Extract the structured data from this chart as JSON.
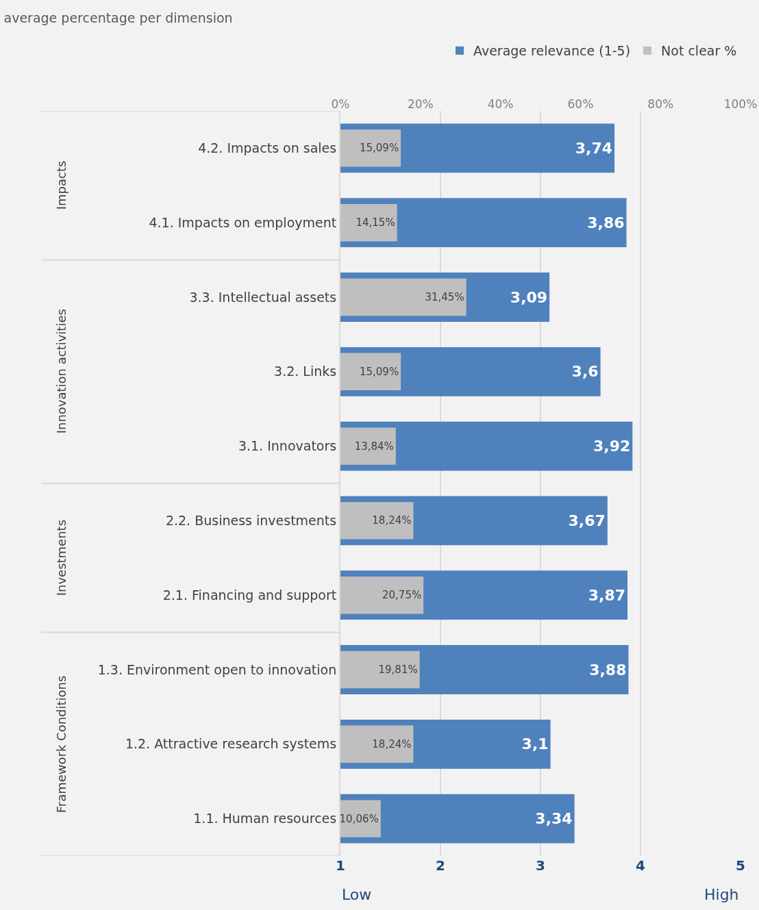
{
  "chart_data": {
    "type": "bar",
    "orientation": "horizontal",
    "title": "average percentage per dimension",
    "categories": [
      "4.2. Impacts on sales",
      "4.1. Impacts on employment",
      "3.3. Intellectual assets",
      "3.2. Links",
      "3.1. Innovators",
      "2.2. Business investments",
      "2.1. Financing and support",
      "1.3. Environment open to innovation",
      "1.2. Attractive research systems",
      "1.1. Human resources"
    ],
    "series": [
      {
        "name": "Average relevance (1-5)",
        "color": "#4f81bd",
        "values": [
          3.74,
          3.86,
          3.09,
          3.6,
          3.92,
          3.67,
          3.87,
          3.88,
          3.1,
          3.34
        ],
        "value_labels": [
          "3,74",
          "3,86",
          "3,09",
          "3,6",
          "3,92",
          "3,67",
          "3,87",
          "3,88",
          "3,1",
          "3,34"
        ]
      },
      {
        "name": "Not clear %",
        "color": "#bfbfbf",
        "axis": "x2",
        "values": [
          15.09,
          14.15,
          31.45,
          15.09,
          13.84,
          18.24,
          20.75,
          19.81,
          18.24,
          10.06
        ],
        "value_labels": [
          "15,09%",
          "14,15%",
          "31,45%",
          "15,09%",
          "13,84%",
          "18,24%",
          "20,75%",
          "19,81%",
          "18,24%",
          "10,06%"
        ]
      }
    ],
    "xlim": [
      1,
      5
    ],
    "xticks": [
      1,
      2,
      3,
      4,
      5
    ],
    "x2lim": [
      0,
      100
    ],
    "x2ticks": [
      {
        "value": 0,
        "label": "0%"
      },
      {
        "value": 20,
        "label": "20%"
      },
      {
        "value": 40,
        "label": "40%"
      },
      {
        "value": 60,
        "label": "60%"
      },
      {
        "value": 80,
        "label": "80%"
      },
      {
        "value": 100,
        "label": "100%"
      }
    ],
    "grid": "x",
    "legend": "top right",
    "annotations": [
      "Impacts",
      "Innovation activities",
      "Investments",
      "Framework Conditions",
      "Low",
      "High"
    ]
  }
}
